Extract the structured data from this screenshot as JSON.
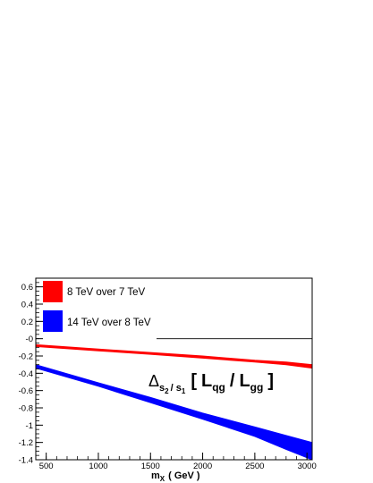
{
  "chart_data": {
    "type": "area",
    "xlabel": "m",
    "xlabel_sub": "X",
    "xlabel_unit": "( GeV )",
    "xlim": [
      400,
      3050
    ],
    "ylim": [
      -1.4,
      0.7
    ],
    "xticks": [
      500,
      1000,
      1500,
      2000,
      2500,
      3000
    ],
    "xtick_labels": [
      "500",
      "1000",
      "1500",
      "2000",
      "2500",
      "3000"
    ],
    "yticks": [
      0.6,
      0.4,
      0.2,
      0.0,
      -0.2,
      -0.4,
      -0.6,
      -0.8,
      -1.0,
      -1.2,
      -1.4
    ],
    "ytick_labels": [
      "0.6",
      "0.4",
      "0.2",
      "-0",
      "-0.2",
      "-0.4",
      "-0.6",
      "-0.8",
      "-1",
      "-1.2",
      "-1.4"
    ],
    "reference_line_y": 0,
    "legend_placement": "top-left",
    "annotation": {
      "delta": "Δ",
      "sub_s2": "s",
      "sub_s2_index": "2",
      "sub_slash": "/ ",
      "sub_s1": "s",
      "sub_s1_index": "1",
      "open_bracket": "[",
      "L1": "L",
      "L1_sub": "qg",
      "slash": "/",
      "L2": "L",
      "L2_sub": "gg",
      "close_bracket": "]"
    },
    "series": [
      {
        "name": "8 TeV over 7 TeV",
        "color": "#ff0000",
        "x": [
          400,
          1000,
          1500,
          2000,
          2500,
          2800,
          3050
        ],
        "upper": [
          -0.07,
          -0.12,
          -0.16,
          -0.2,
          -0.25,
          -0.27,
          -0.3
        ],
        "lower": [
          -0.09,
          -0.14,
          -0.18,
          -0.225,
          -0.27,
          -0.3,
          -0.34
        ]
      },
      {
        "name": "14 TeV over 8 TeV",
        "color": "#0000ff",
        "x": [
          400,
          1000,
          1500,
          2000,
          2500,
          2800,
          3050
        ],
        "upper": [
          -0.3,
          -0.51,
          -0.68,
          -0.86,
          -1.02,
          -1.12,
          -1.2
        ],
        "lower": [
          -0.34,
          -0.55,
          -0.74,
          -0.93,
          -1.13,
          -1.28,
          -1.4
        ]
      }
    ]
  }
}
